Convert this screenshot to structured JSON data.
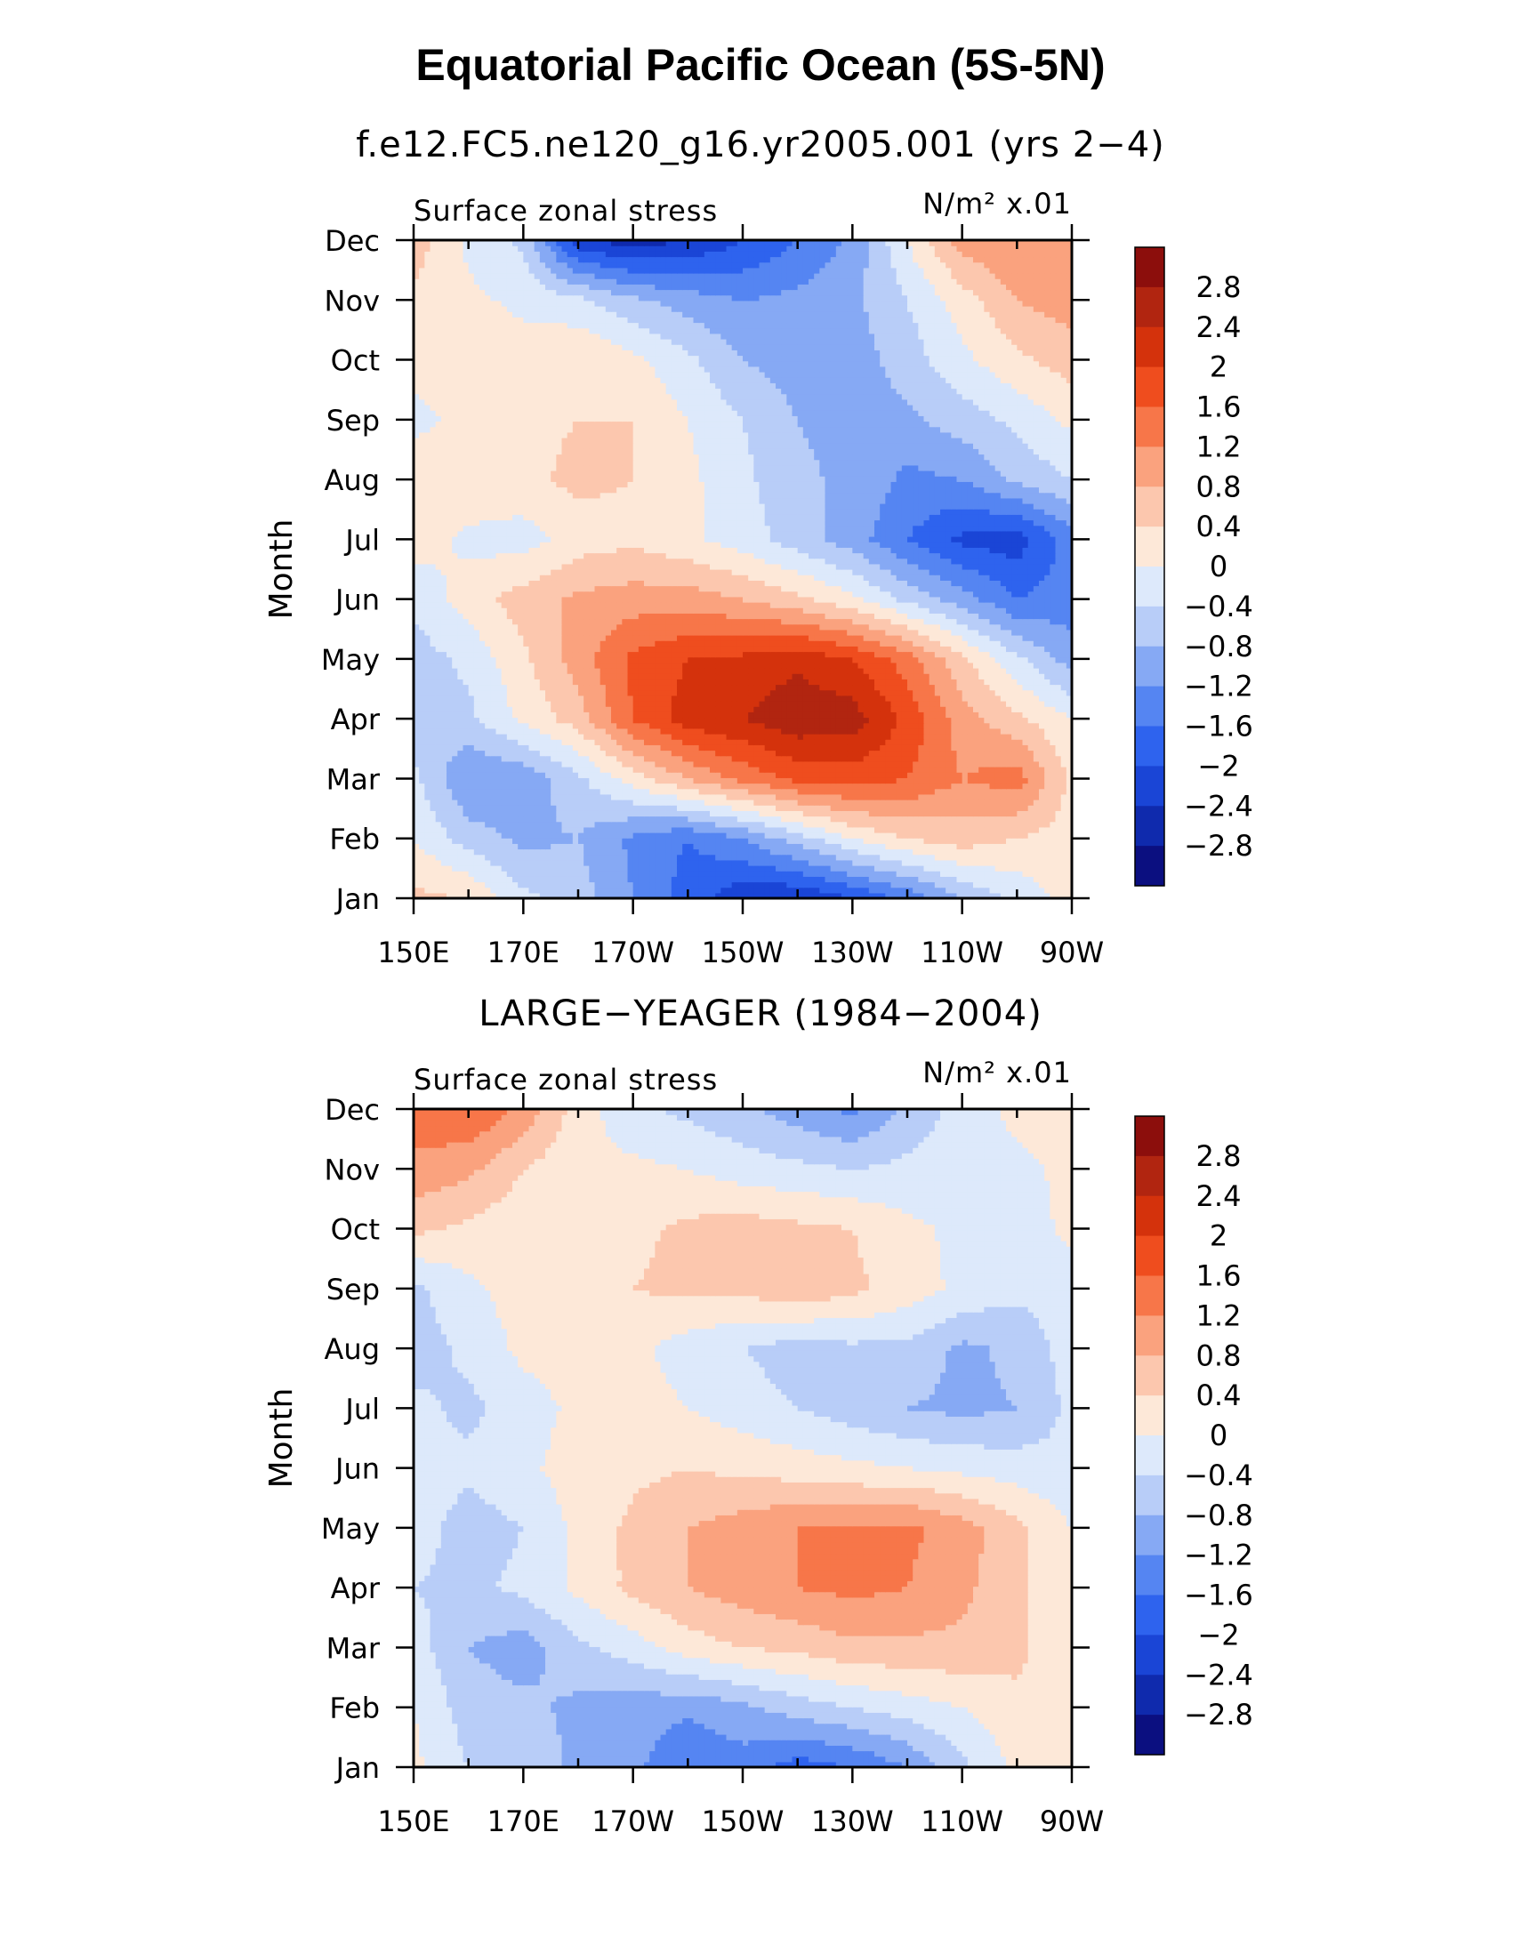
{
  "title": "Equatorial Pacific Ocean (5S-5N)",
  "chart_data": [
    {
      "type": "heatmap",
      "title": "f.e12.FC5.ne120_g16.yr2005.001 (yrs 2−4)",
      "left_label": "Surface zonal stress",
      "right_label": "N/m² x.01",
      "ylabel": "Month",
      "xticks": [
        "150E",
        "170E",
        "170W",
        "150W",
        "130W",
        "110W",
        "90W"
      ],
      "yticks": [
        "Jan",
        "Feb",
        "Mar",
        "Apr",
        "May",
        "Jun",
        "Jul",
        "Aug",
        "Sep",
        "Oct",
        "Nov",
        "Dec"
      ],
      "colorbar_labels": [
        "2.8",
        "2.4",
        "2",
        "1.6",
        "1.2",
        "0.8",
        "0.4",
        "0",
        "−0.4",
        "−0.8",
        "−1.2",
        "−1.6",
        "−2",
        "−2.4",
        "−2.8"
      ],
      "colorbar_levels": [
        -2.8,
        -2.4,
        -2,
        -1.6,
        -1.2,
        -0.8,
        -0.4,
        0,
        0.4,
        0.8,
        1.2,
        1.6,
        2,
        2.4,
        2.8
      ],
      "x_lon": [
        150,
        160,
        170,
        180,
        190,
        200,
        210,
        220,
        230,
        240,
        250,
        260,
        270
      ],
      "grid_month_index": [
        0,
        1,
        2,
        3,
        4,
        5,
        6,
        7,
        8,
        9,
        10,
        11
      ],
      "values": [
        [
          0.5,
          0.4,
          -0.3,
          -0.6,
          -1.2,
          -1.8,
          -2.3,
          -2.4,
          -2.0,
          -1.5,
          -0.8,
          -0.3,
          0.2
        ],
        [
          0.0,
          -0.6,
          -0.9,
          -0.8,
          -1.3,
          -1.6,
          -1.2,
          -0.6,
          0.0,
          0.4,
          0.6,
          0.4,
          0.2
        ],
        [
          -0.3,
          -1.2,
          -1.1,
          -0.5,
          0.2,
          0.8,
          1.3,
          1.7,
          1.8,
          1.6,
          1.2,
          1.4,
          0.3
        ],
        [
          -0.7,
          -0.5,
          0.1,
          0.6,
          1.6,
          2.2,
          2.4,
          2.7,
          2.6,
          1.9,
          1.0,
          0.5,
          0.0
        ],
        [
          -0.6,
          -0.3,
          0.3,
          1.0,
          1.7,
          2.0,
          2.1,
          2.3,
          2.0,
          1.4,
          0.5,
          -0.3,
          -1.0
        ],
        [
          -0.3,
          0.2,
          0.6,
          0.9,
          1.0,
          1.0,
          0.8,
          0.5,
          0.1,
          -0.5,
          -1.0,
          -1.6,
          -1.4
        ],
        [
          0.2,
          -0.1,
          -0.2,
          0.2,
          0.3,
          0.1,
          -0.2,
          -0.6,
          -1.0,
          -1.6,
          -2.1,
          -2.2,
          -1.4
        ],
        [
          0.2,
          0.3,
          0.3,
          0.5,
          0.4,
          0.1,
          -0.3,
          -0.7,
          -0.9,
          -1.3,
          -1.2,
          -0.7,
          -0.4
        ],
        [
          -0.1,
          0.1,
          0.3,
          0.4,
          0.4,
          0.0,
          -0.4,
          -0.8,
          -1.0,
          -0.9,
          -0.6,
          -0.3,
          0.1
        ],
        [
          0.1,
          0.3,
          0.2,
          0.4,
          0.1,
          -0.3,
          -0.8,
          -1.0,
          -1.0,
          -0.6,
          -0.1,
          0.3,
          0.6
        ],
        [
          0.3,
          0.1,
          -0.1,
          -0.3,
          -0.7,
          -1.0,
          -1.2,
          -1.1,
          -0.9,
          -0.4,
          0.2,
          0.8,
          1.0
        ],
        [
          0.6,
          -0.1,
          -0.5,
          -2.3,
          -2.6,
          -2.4,
          -2.0,
          -1.6,
          -1.1,
          0.0,
          1.0,
          1.2,
          0.8
        ]
      ]
    },
    {
      "type": "heatmap",
      "title": "LARGE−YEAGER (1984−2004)",
      "left_label": "Surface zonal stress",
      "right_label": "N/m² x.01",
      "ylabel": "Month",
      "xticks": [
        "150E",
        "170E",
        "170W",
        "150W",
        "130W",
        "110W",
        "90W"
      ],
      "yticks": [
        "Jan",
        "Feb",
        "Mar",
        "Apr",
        "May",
        "Jun",
        "Jul",
        "Aug",
        "Sep",
        "Oct",
        "Nov",
        "Dec"
      ],
      "colorbar_labels": [
        "2.8",
        "2.4",
        "2",
        "1.6",
        "1.2",
        "0.8",
        "0.4",
        "0",
        "−0.4",
        "−0.8",
        "−1.2",
        "−1.6",
        "−2",
        "−2.4",
        "−2.8"
      ],
      "colorbar_levels": [
        -2.8,
        -2.4,
        -2,
        -1.6,
        -1.2,
        -0.8,
        -0.4,
        0,
        0.4,
        0.8,
        1.2,
        1.6,
        2,
        2.4,
        2.8
      ],
      "x_lon": [
        150,
        160,
        170,
        180,
        190,
        200,
        210,
        220,
        230,
        240,
        250,
        260,
        270
      ],
      "grid_month_index": [
        0,
        1,
        2,
        3,
        4,
        5,
        6,
        7,
        8,
        9,
        10,
        11
      ],
      "values": [
        [
          0.1,
          -0.4,
          -0.5,
          -0.9,
          -1.1,
          -1.6,
          -1.4,
          -1.8,
          -1.6,
          -1.2,
          -0.5,
          0.1,
          0.2
        ],
        [
          0.0,
          -0.6,
          -0.7,
          -0.9,
          -1.0,
          -1.1,
          -0.9,
          -0.6,
          -0.4,
          -0.2,
          0.0,
          0.3,
          0.2
        ],
        [
          -0.2,
          -0.8,
          -1.0,
          -0.5,
          -0.2,
          0.2,
          0.4,
          0.5,
          0.7,
          0.7,
          0.7,
          0.5,
          0.1
        ],
        [
          -0.4,
          -0.5,
          -0.3,
          0.1,
          0.5,
          0.8,
          1.0,
          1.2,
          1.3,
          1.2,
          0.9,
          0.5,
          0.0
        ],
        [
          -0.2,
          -0.6,
          -0.4,
          0.1,
          0.5,
          0.8,
          1.0,
          1.2,
          1.2,
          1.3,
          1.0,
          0.5,
          0.0
        ],
        [
          -0.2,
          -0.3,
          -0.1,
          0.2,
          0.3,
          0.4,
          0.3,
          0.2,
          0.1,
          0.0,
          -0.1,
          -0.2,
          -0.3
        ],
        [
          -0.3,
          -0.5,
          -0.2,
          0.1,
          0.2,
          0.0,
          -0.2,
          -0.4,
          -0.6,
          -0.8,
          -0.9,
          -0.8,
          -0.3
        ],
        [
          -0.6,
          -0.3,
          0.1,
          0.2,
          0.1,
          -0.2,
          -0.4,
          -0.6,
          -0.5,
          -0.5,
          -0.9,
          -0.7,
          -0.2
        ],
        [
          -0.5,
          -0.1,
          0.2,
          0.3,
          0.4,
          0.5,
          0.5,
          0.7,
          0.5,
          0.2,
          -0.1,
          -0.3,
          -0.2
        ],
        [
          0.5,
          0.3,
          0.1,
          0.2,
          0.3,
          0.5,
          0.6,
          0.5,
          0.4,
          0.1,
          -0.1,
          -0.2,
          0.1
        ],
        [
          1.1,
          0.9,
          0.4,
          0.1,
          0.1,
          0.0,
          -0.2,
          -0.3,
          -0.4,
          -0.3,
          -0.2,
          -0.1,
          0.1
        ],
        [
          1.4,
          1.6,
          1.1,
          0.2,
          -0.3,
          -0.5,
          -0.7,
          -1.0,
          -1.3,
          -0.7,
          -0.2,
          0.1,
          0.2
        ]
      ]
    }
  ],
  "colors": [
    "#0b0f80",
    "#0f2aad",
    "#1a45d6",
    "#2e63ee",
    "#5585f2",
    "#86a9f4",
    "#b8cdf8",
    "#dde9fb",
    "#fde8d8",
    "#fcc7ae",
    "#faa27e",
    "#f77649",
    "#ef4d1e",
    "#d4320c",
    "#b12510",
    "#8c0e0c"
  ]
}
